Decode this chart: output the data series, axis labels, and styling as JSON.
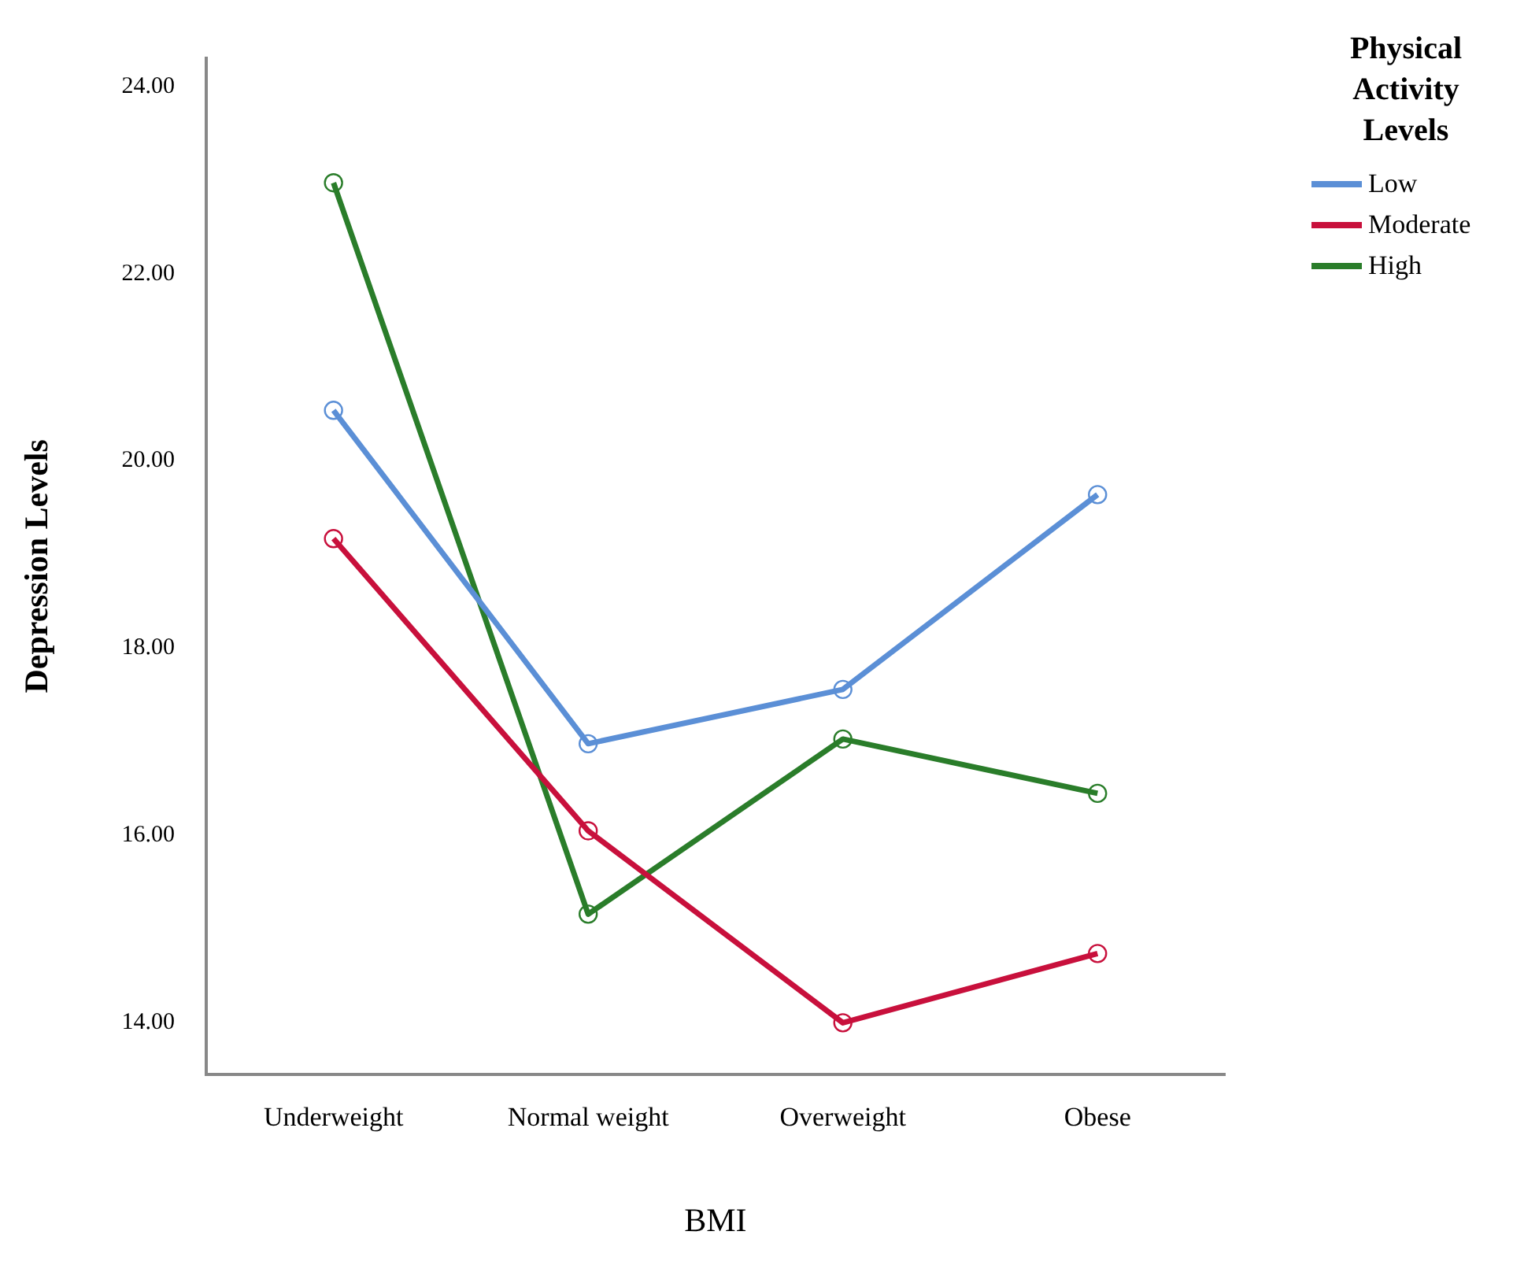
{
  "chart_data": {
    "type": "line",
    "xlabel": "BMI",
    "ylabel": "Depression Levels",
    "legend_title": "Physical Activity Levels",
    "categories": [
      "Underweight",
      "Normal weight",
      "Overweight",
      "Obese"
    ],
    "series": [
      {
        "name": "Low",
        "color": "#5b8fd6",
        "values": [
          20.54,
          16.98,
          17.56,
          19.64
        ]
      },
      {
        "name": "Moderate",
        "color": "#c8103c",
        "values": [
          19.17,
          16.05,
          14.0,
          14.74
        ]
      },
      {
        "name": "High",
        "color": "#2a7d2a",
        "values": [
          22.97,
          15.16,
          17.03,
          16.45
        ]
      }
    ],
    "ylim": [
      13.45,
      24.3
    ],
    "yticks": [
      {
        "value": 14,
        "label": "14.00"
      },
      {
        "value": 16,
        "label": "16.00"
      },
      {
        "value": 18,
        "label": "18.00"
      },
      {
        "value": 20,
        "label": "20.00"
      },
      {
        "value": 22,
        "label": "22.00"
      },
      {
        "value": 24,
        "label": "24.00"
      }
    ],
    "grid": false,
    "legend": "top right",
    "marker": "circle",
    "line_style": "solid"
  }
}
